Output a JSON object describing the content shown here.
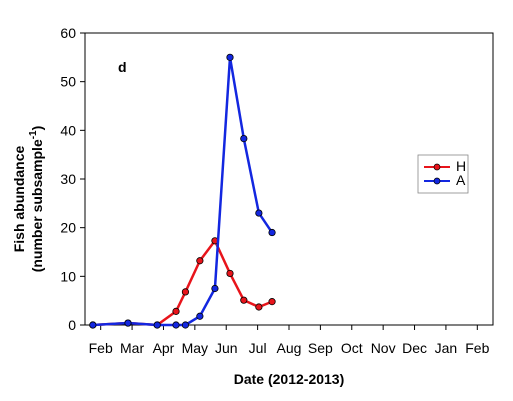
{
  "chart_data": {
    "type": "line",
    "panel_label": "d",
    "xlabel": "Date (2012-2013)",
    "ylabel": [
      "Fish abundance",
      "(number subsample",
      "-1",
      ")"
    ],
    "xlim": [
      0,
      13
    ],
    "xticks": [
      {
        "value": 0.5,
        "label": "Feb"
      },
      {
        "value": 1.5,
        "label": "Mar"
      },
      {
        "value": 2.5,
        "label": "Apr"
      },
      {
        "value": 3.5,
        "label": "May"
      },
      {
        "value": 4.5,
        "label": "Jun"
      },
      {
        "value": 5.5,
        "label": "Jul"
      },
      {
        "value": 6.5,
        "label": "Aug"
      },
      {
        "value": 7.5,
        "label": "Sep"
      },
      {
        "value": 8.5,
        "label": "Oct"
      },
      {
        "value": 9.5,
        "label": "Nov"
      },
      {
        "value": 10.5,
        "label": "Dec"
      },
      {
        "value": 11.5,
        "label": "Jan"
      },
      {
        "value": 12.5,
        "label": "Feb"
      }
    ],
    "ylim": [
      0,
      60
    ],
    "yticks": [
      0,
      10,
      20,
      30,
      40,
      50,
      60
    ],
    "legend": "right",
    "series": [
      {
        "name": "H",
        "color": "#e8141b",
        "x": [
          0.25,
          1.37,
          2.3,
          2.9,
          3.2,
          3.66,
          4.14,
          4.62,
          5.06,
          5.54,
          5.96
        ],
        "values": [
          0,
          0.4,
          0,
          2.8,
          6.8,
          13.2,
          17.3,
          10.6,
          5.1,
          3.7,
          4.8
        ]
      },
      {
        "name": "A",
        "color": "#1327e0",
        "x": [
          0.25,
          1.37,
          2.3,
          2.9,
          3.2,
          3.66,
          4.14,
          4.62,
          5.06,
          5.54,
          5.96
        ],
        "values": [
          0,
          0.4,
          0,
          0,
          0,
          1.8,
          7.5,
          55,
          38.3,
          23,
          19
        ]
      }
    ]
  }
}
